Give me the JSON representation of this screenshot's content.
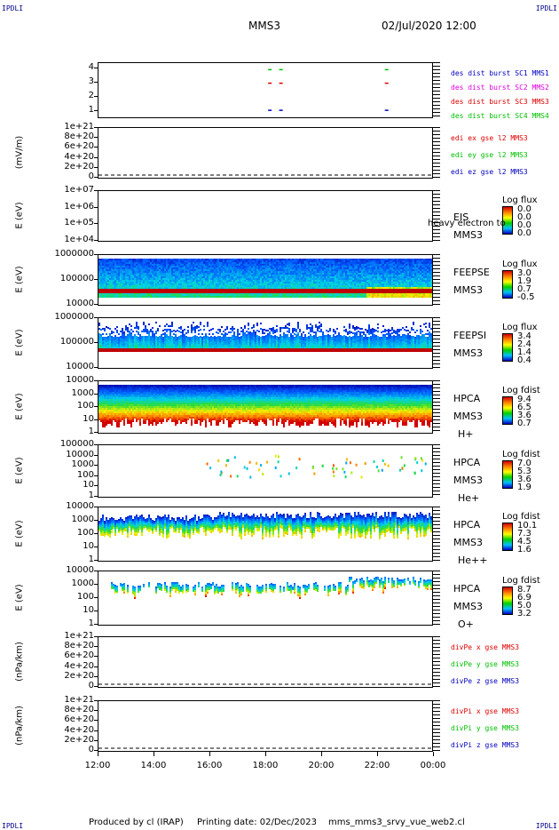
{
  "header": {
    "corner_left_top": "IPDLI",
    "corner_right_top": "IPDLI",
    "spacecraft": "MMS3",
    "datetime": "02/Jul/2020 12:00",
    "corner_left_bottom": "IPDLI",
    "corner_right_bottom": "IPDLI"
  },
  "footer": {
    "produced": "Produced by cl (IRAP)",
    "printing": "Printing date: 02/Dec/2023",
    "file": "mms_mms3_srvy_vue_web2.cl"
  },
  "x_axis": {
    "ticks": [
      "12:00",
      "14:00",
      "16:00",
      "18:00",
      "20:00",
      "22:00",
      "00:00"
    ]
  },
  "colors": {
    "mms1": "#0000c0",
    "mms2": "#e000e0",
    "mms3": "#e00000",
    "mms4": "#00c000"
  },
  "chart_data": [
    {
      "type": "scatter",
      "id": "burst",
      "ylim": [
        0.5,
        4.5
      ],
      "yticks": [
        "4",
        "3",
        "2",
        "1"
      ],
      "legend": [
        "des dist burst SC1 MMS1",
        "des dist burst SC2 MMS2",
        "des dist burst SC3 MMS3",
        "des dist burst SC4 MMS4"
      ],
      "series": [
        {
          "name": "des dist burst SC1 MMS1",
          "x": [
            18.1,
            18.5,
            22.3
          ],
          "y": [
            1,
            1,
            1
          ]
        },
        {
          "name": "des dist burst SC3 MMS3",
          "x": [
            18.1,
            18.5,
            22.3
          ],
          "y": [
            3,
            3,
            3
          ]
        },
        {
          "name": "des dist burst SC4 MMS4",
          "x": [
            18.1,
            18.5,
            22.3
          ],
          "y": [
            4,
            4,
            4
          ]
        }
      ]
    },
    {
      "type": "line",
      "id": "edi",
      "ylabel": "(mV/m)",
      "yticks": [
        "1e+21",
        "8e+20",
        "6e+20",
        "4e+20",
        "2e+20",
        "0"
      ],
      "legend": [
        "edi ex gse l2 MMS3",
        "edi ey gse l2 MMS3",
        "edi ez gse l2 MMS3"
      ]
    },
    {
      "type": "heatmap",
      "id": "eis",
      "ylabel": "E (eV)",
      "yticks": [
        "1e+07",
        "1e+06",
        "1e+05",
        "1e+04"
      ],
      "instrument": [
        "EIS",
        "MMS3"
      ],
      "overlay_text": "heavy electron to",
      "cbar_title": "Log flux",
      "cbar_values": [
        "0.0",
        "0.0",
        "0.0",
        "0.0"
      ]
    },
    {
      "type": "heatmap",
      "id": "feepse",
      "ylabel": "E (eV)",
      "yticks": [
        "1000000",
        "100000",
        "10000"
      ],
      "instrument": [
        "FEEPSE",
        "MMS3"
      ],
      "cbar_title": "Log flux",
      "cbar_values": [
        "3.0",
        "1.9",
        "0.7",
        "-0.5"
      ]
    },
    {
      "type": "heatmap",
      "id": "feepsi",
      "ylabel": "E (eV)",
      "yticks": [
        "1000000",
        "100000",
        "10000"
      ],
      "instrument": [
        "FEEPSI",
        "MMS3"
      ],
      "cbar_title": "Log flux",
      "cbar_values": [
        "3.4",
        "2.4",
        "1.4",
        "0.4"
      ]
    },
    {
      "type": "heatmap",
      "id": "hpca_h",
      "ylabel": "E (eV)",
      "yticks": [
        "10000",
        "1000",
        "100",
        "10",
        "1"
      ],
      "instrument": [
        "HPCA",
        "MMS3",
        "H+"
      ],
      "cbar_title": "Log fdist",
      "cbar_values": [
        "9.4",
        "6.5",
        "3.6",
        "0.7"
      ]
    },
    {
      "type": "heatmap",
      "id": "hpca_he",
      "ylabel": "E (eV)",
      "yticks": [
        "100000",
        "10000",
        "1000",
        "100",
        "10",
        "1"
      ],
      "instrument": [
        "HPCA",
        "MMS3",
        "He+"
      ],
      "cbar_title": "Log fdist",
      "cbar_values": [
        "7.0",
        "5.3",
        "3.6",
        "1.9"
      ]
    },
    {
      "type": "heatmap",
      "id": "hpca_hepp",
      "ylabel": "E (eV)",
      "yticks": [
        "10000",
        "1000",
        "100",
        "10",
        "1"
      ],
      "instrument": [
        "HPCA",
        "MMS3",
        "He++"
      ],
      "cbar_title": "Log fdist",
      "cbar_values": [
        "10.1",
        "7.3",
        "4.5",
        "1.6"
      ]
    },
    {
      "type": "heatmap",
      "id": "hpca_o",
      "ylabel": "E (eV)",
      "yticks": [
        "10000",
        "1000",
        "100",
        "10",
        "1"
      ],
      "instrument": [
        "HPCA",
        "MMS3",
        "O+"
      ],
      "cbar_title": "Log fdist",
      "cbar_values": [
        "8.7",
        "6.9",
        "5.0",
        "3.2"
      ]
    },
    {
      "type": "line",
      "id": "divpe",
      "ylabel": "(nPa/km)",
      "yticks": [
        "1e+21",
        "8e+20",
        "6e+20",
        "4e+20",
        "2e+20",
        "0"
      ],
      "legend": [
        "divPe x gse MMS3",
        "divPe y gse MMS3",
        "divPe z gse MMS3"
      ]
    },
    {
      "type": "line",
      "id": "divpi",
      "ylabel": "(nPa/km)",
      "yticks": [
        "1e+21",
        "8e+20",
        "6e+20",
        "4e+20",
        "2e+20",
        "0"
      ],
      "legend": [
        "divPi x gse MMS3",
        "divPi y gse MMS3",
        "divPi z gse MMS3"
      ]
    }
  ]
}
